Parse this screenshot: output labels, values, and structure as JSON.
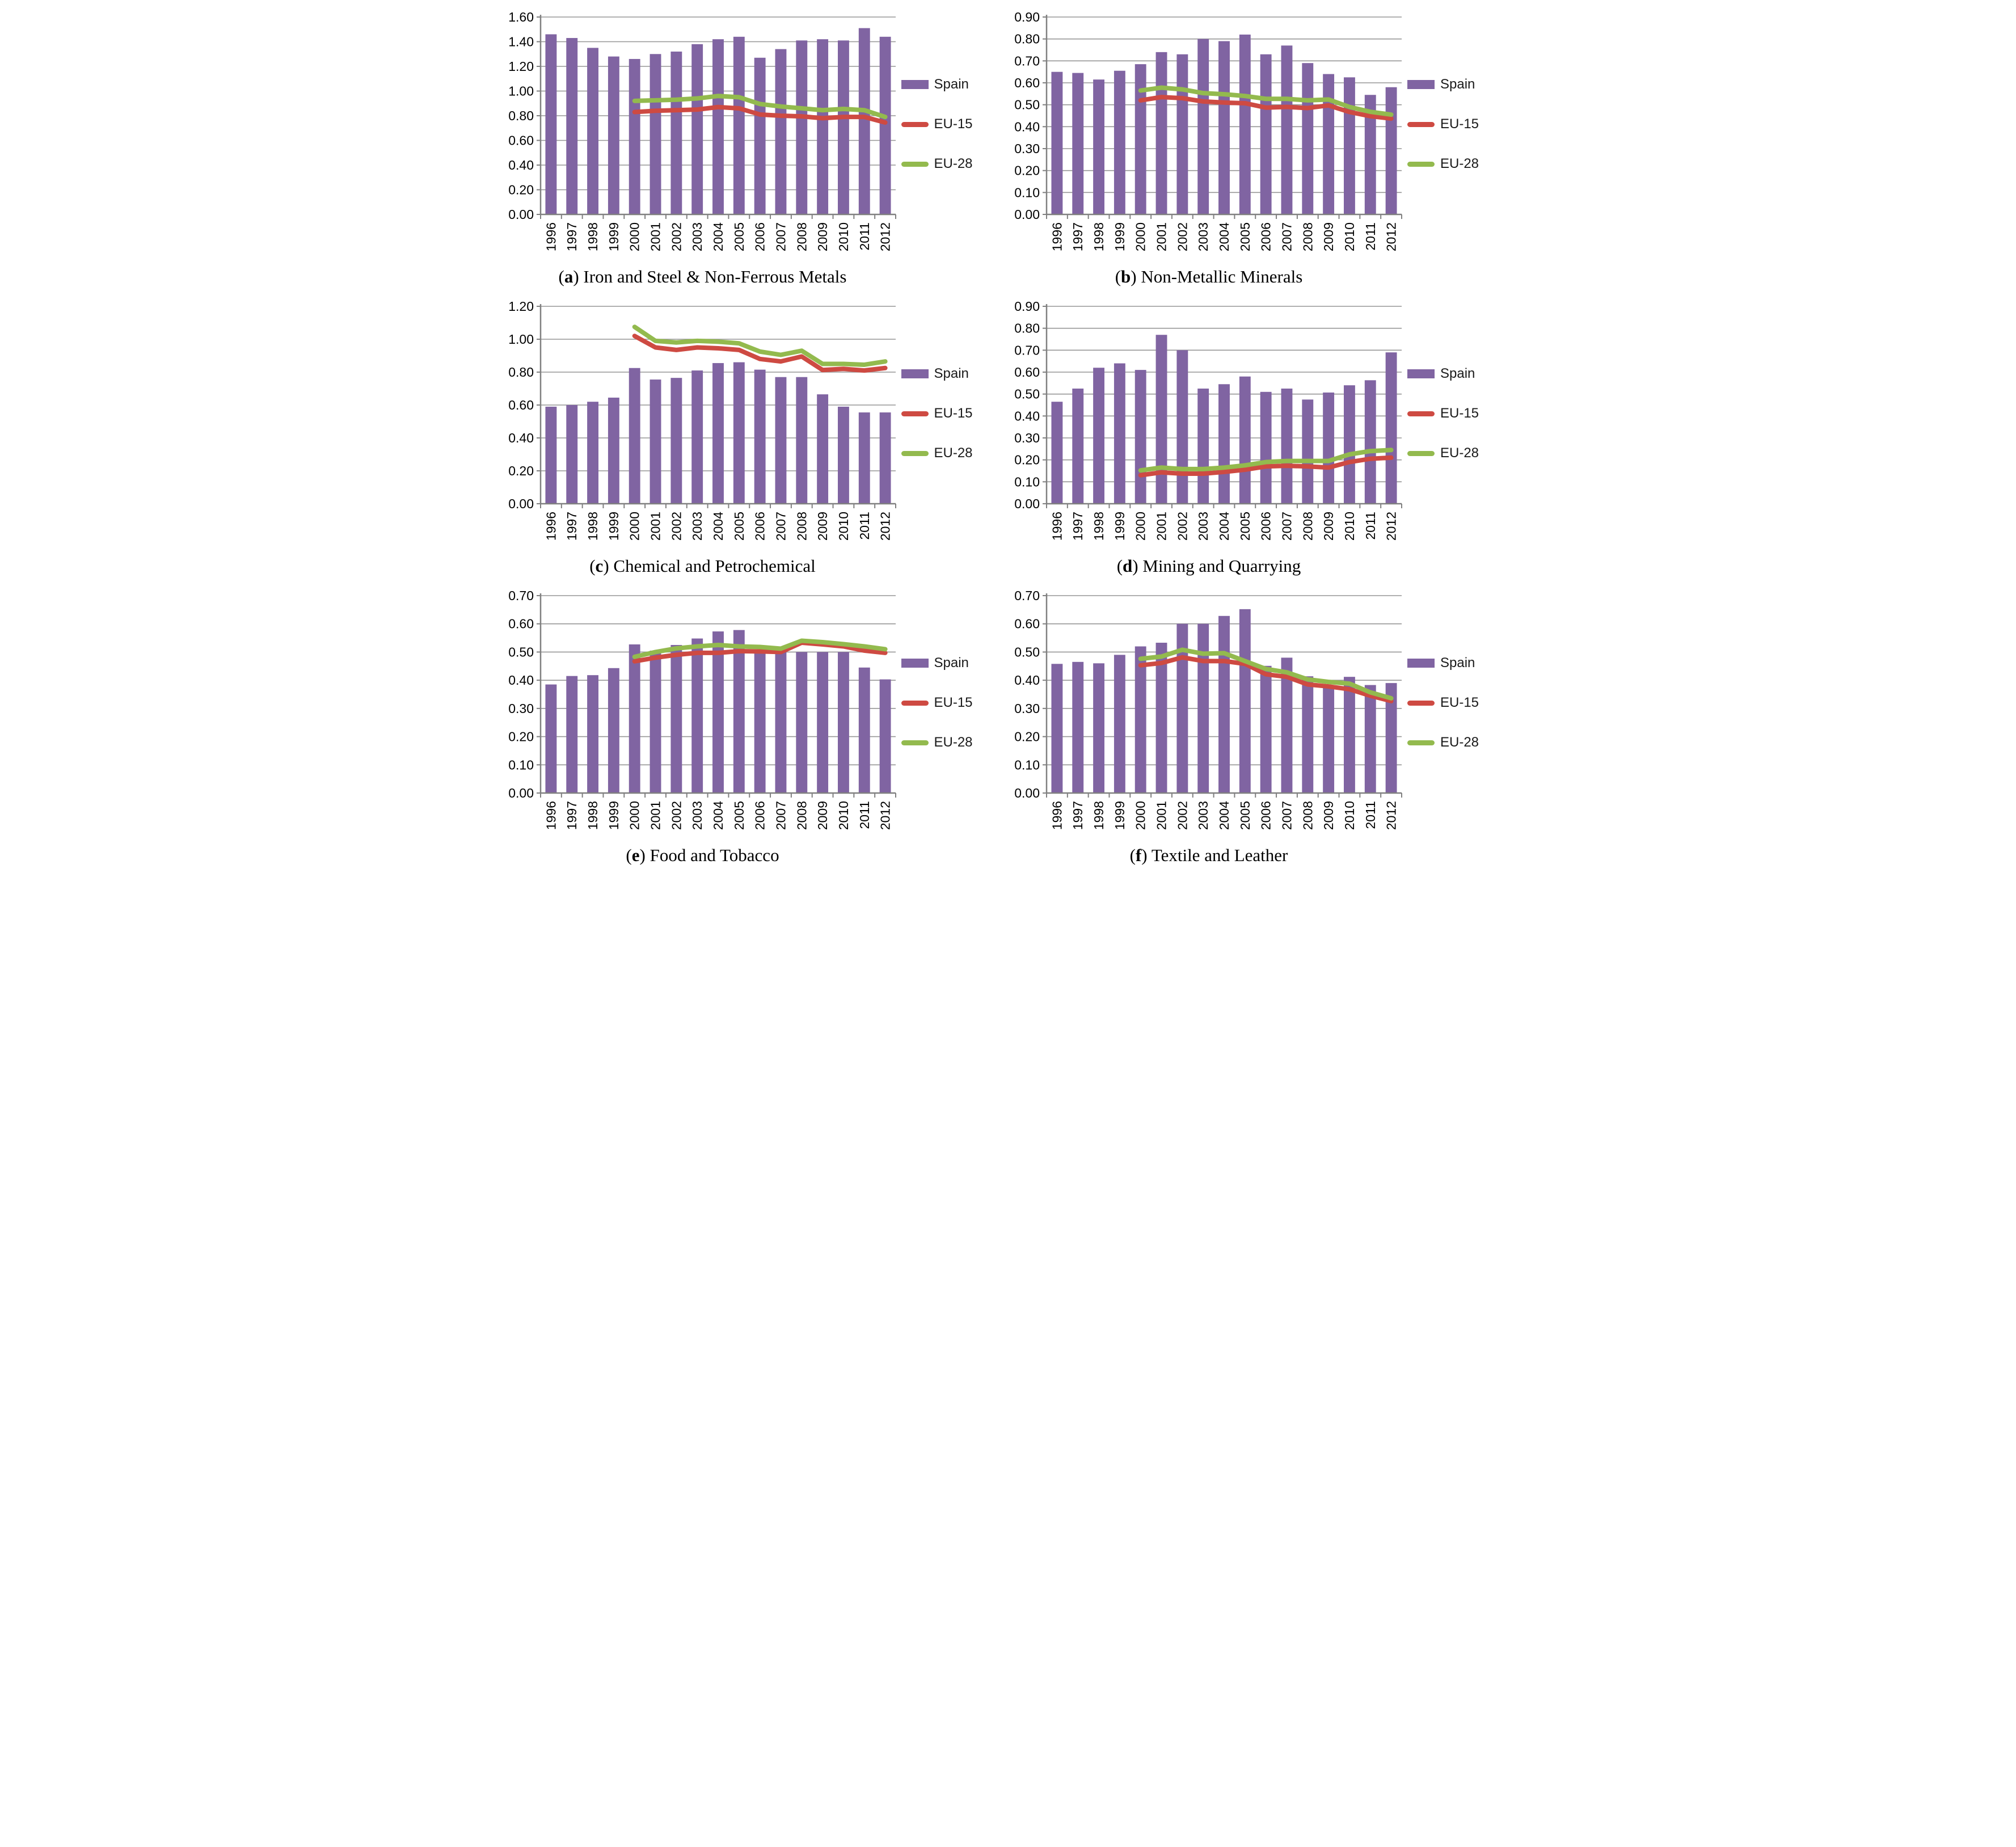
{
  "figure": {
    "legend": {
      "spain": "Spain",
      "eu15": "EU-15",
      "eu28": "EU-28"
    },
    "colors": {
      "spain": "#8064A2",
      "eu15": "#CE4A42",
      "eu28": "#93BA4E",
      "grid": "#969696",
      "axis": "#808080"
    }
  },
  "chart_data": [
    {
      "id": "a",
      "letter": "a",
      "caption": "Iron and Steel & Non-Ferrous Metals",
      "type": "bar",
      "grid": true,
      "legend_position": "right",
      "categories": [
        "1996",
        "1997",
        "1998",
        "1999",
        "2000",
        "2001",
        "2002",
        "2003",
        "2004",
        "2005",
        "2006",
        "2007",
        "2008",
        "2009",
        "2010",
        "2011",
        "2012"
      ],
      "ylim": [
        0,
        1.6
      ],
      "ystep": 0.2,
      "series": [
        {
          "name": "Spain",
          "type": "bar",
          "color_key": "spain",
          "values": [
            1.46,
            1.43,
            1.35,
            1.28,
            1.26,
            1.3,
            1.32,
            1.38,
            1.42,
            1.44,
            1.27,
            1.34,
            1.41,
            1.42,
            1.41,
            1.51,
            1.44
          ]
        },
        {
          "name": "EU-15",
          "type": "line",
          "color_key": "eu15",
          "values": [
            null,
            null,
            null,
            null,
            0.83,
            0.84,
            0.845,
            0.85,
            0.87,
            0.86,
            0.81,
            0.8,
            0.795,
            0.78,
            0.79,
            0.79,
            0.745
          ]
        },
        {
          "name": "EU-28",
          "type": "line",
          "color_key": "eu28",
          "values": [
            null,
            null,
            null,
            null,
            0.92,
            0.925,
            0.93,
            0.94,
            0.96,
            0.95,
            0.895,
            0.875,
            0.86,
            0.845,
            0.855,
            0.845,
            0.79
          ]
        }
      ]
    },
    {
      "id": "b",
      "letter": "b",
      "caption": "Non-Metallic Minerals",
      "type": "bar",
      "grid": true,
      "legend_position": "right",
      "categories": [
        "1996",
        "1997",
        "1998",
        "1999",
        "2000",
        "2001",
        "2002",
        "2003",
        "2004",
        "2005",
        "2006",
        "2007",
        "2008",
        "2009",
        "2010",
        "2011",
        "2012"
      ],
      "ylim": [
        0,
        0.9
      ],
      "ystep": 0.1,
      "series": [
        {
          "name": "Spain",
          "type": "bar",
          "color_key": "spain",
          "values": [
            0.65,
            0.645,
            0.615,
            0.655,
            0.685,
            0.74,
            0.73,
            0.8,
            0.79,
            0.82,
            0.73,
            0.77,
            0.69,
            0.64,
            0.625,
            0.545,
            0.58
          ]
        },
        {
          "name": "EU-15",
          "type": "line",
          "color_key": "eu15",
          "values": [
            null,
            null,
            null,
            null,
            0.52,
            0.535,
            0.53,
            0.515,
            0.51,
            0.507,
            0.487,
            0.49,
            0.485,
            0.497,
            0.467,
            0.448,
            0.437
          ]
        },
        {
          "name": "EU-28",
          "type": "line",
          "color_key": "eu28",
          "values": [
            null,
            null,
            null,
            null,
            0.565,
            0.578,
            0.57,
            0.553,
            0.548,
            0.54,
            0.527,
            0.527,
            0.52,
            0.524,
            0.49,
            0.468,
            0.455
          ]
        }
      ]
    },
    {
      "id": "c",
      "letter": "c",
      "caption": "Chemical and Petrochemical",
      "type": "bar",
      "grid": true,
      "legend_position": "right",
      "categories": [
        "1996",
        "1997",
        "1998",
        "1999",
        "2000",
        "2001",
        "2002",
        "2003",
        "2004",
        "2005",
        "2006",
        "2007",
        "2008",
        "2009",
        "2010",
        "2011",
        "2012"
      ],
      "ylim": [
        0,
        1.2
      ],
      "ystep": 0.2,
      "series": [
        {
          "name": "Spain",
          "type": "bar",
          "color_key": "spain",
          "values": [
            0.59,
            0.6,
            0.62,
            0.645,
            0.825,
            0.755,
            0.765,
            0.81,
            0.855,
            0.86,
            0.815,
            0.77,
            0.77,
            0.665,
            0.59,
            0.555,
            0.555
          ]
        },
        {
          "name": "EU-15",
          "type": "line",
          "color_key": "eu15",
          "values": [
            null,
            null,
            null,
            null,
            1.02,
            0.95,
            0.935,
            0.95,
            0.945,
            0.935,
            0.88,
            0.865,
            0.895,
            0.813,
            0.82,
            0.81,
            0.825
          ]
        },
        {
          "name": "EU-28",
          "type": "line",
          "color_key": "eu28",
          "values": [
            null,
            null,
            null,
            null,
            1.075,
            0.99,
            0.98,
            0.99,
            0.985,
            0.975,
            0.925,
            0.905,
            0.93,
            0.85,
            0.85,
            0.845,
            0.865
          ]
        }
      ]
    },
    {
      "id": "d",
      "letter": "d",
      "caption": "Mining and Quarrying",
      "type": "bar",
      "grid": true,
      "legend_position": "right",
      "categories": [
        "1996",
        "1997",
        "1998",
        "1999",
        "2000",
        "2001",
        "2002",
        "2003",
        "2004",
        "2005",
        "2006",
        "2007",
        "2008",
        "2009",
        "2010",
        "2011",
        "2012"
      ],
      "ylim": [
        0,
        0.9
      ],
      "ystep": 0.1,
      "series": [
        {
          "name": "Spain",
          "type": "bar",
          "color_key": "spain",
          "values": [
            0.465,
            0.525,
            0.62,
            0.64,
            0.61,
            0.77,
            0.7,
            0.525,
            0.545,
            0.58,
            0.51,
            0.525,
            0.475,
            0.507,
            0.54,
            0.563,
            0.69
          ]
        },
        {
          "name": "EU-15",
          "type": "line",
          "color_key": "eu15",
          "values": [
            null,
            null,
            null,
            null,
            0.13,
            0.143,
            0.137,
            0.137,
            0.145,
            0.155,
            0.17,
            0.173,
            0.17,
            0.165,
            0.19,
            0.205,
            0.21
          ]
        },
        {
          "name": "EU-28",
          "type": "line",
          "color_key": "eu28",
          "values": [
            null,
            null,
            null,
            null,
            0.152,
            0.165,
            0.158,
            0.158,
            0.165,
            0.175,
            0.19,
            0.195,
            0.195,
            0.195,
            0.225,
            0.24,
            0.245
          ]
        }
      ]
    },
    {
      "id": "e",
      "letter": "e",
      "caption": "Food and Tobacco",
      "type": "bar",
      "grid": true,
      "legend_position": "right",
      "categories": [
        "1996",
        "1997",
        "1998",
        "1999",
        "2000",
        "2001",
        "2002",
        "2003",
        "2004",
        "2005",
        "2006",
        "2007",
        "2008",
        "2009",
        "2010",
        "2011",
        "2012"
      ],
      "ylim": [
        0,
        0.7
      ],
      "ystep": 0.1,
      "series": [
        {
          "name": "Spain",
          "type": "bar",
          "color_key": "spain",
          "values": [
            0.385,
            0.415,
            0.418,
            0.443,
            0.527,
            0.505,
            0.525,
            0.548,
            0.573,
            0.578,
            0.5,
            0.5,
            0.5,
            0.5,
            0.5,
            0.445,
            0.403
          ]
        },
        {
          "name": "EU-15",
          "type": "line",
          "color_key": "eu15",
          "values": [
            null,
            null,
            null,
            null,
            0.467,
            0.48,
            0.49,
            0.497,
            0.497,
            0.503,
            0.502,
            0.5,
            0.533,
            0.527,
            0.52,
            0.505,
            0.497
          ]
        },
        {
          "name": "EU-28",
          "type": "line",
          "color_key": "eu28",
          "values": [
            null,
            null,
            null,
            null,
            0.483,
            0.5,
            0.513,
            0.52,
            0.525,
            0.52,
            0.518,
            0.512,
            0.54,
            0.535,
            0.528,
            0.52,
            0.51
          ]
        }
      ]
    },
    {
      "id": "f",
      "letter": "f",
      "caption": "Textile and Leather",
      "type": "bar",
      "grid": true,
      "legend_position": "right",
      "categories": [
        "1996",
        "1997",
        "1998",
        "1999",
        "2000",
        "2001",
        "2002",
        "2003",
        "2004",
        "2005",
        "2006",
        "2007",
        "2008",
        "2009",
        "2010",
        "2011",
        "2012"
      ],
      "ylim": [
        0,
        0.7
      ],
      "ystep": 0.1,
      "series": [
        {
          "name": "Spain",
          "type": "bar",
          "color_key": "spain",
          "values": [
            0.458,
            0.465,
            0.46,
            0.49,
            0.52,
            0.533,
            0.6,
            0.6,
            0.628,
            0.652,
            0.451,
            0.48,
            0.414,
            0.38,
            0.412,
            0.383,
            0.39
          ]
        },
        {
          "name": "EU-15",
          "type": "line",
          "color_key": "eu15",
          "values": [
            null,
            null,
            null,
            null,
            0.453,
            0.461,
            0.481,
            0.468,
            0.468,
            0.458,
            0.421,
            0.412,
            0.385,
            0.378,
            0.368,
            0.345,
            0.326
          ]
        },
        {
          "name": "EU-28",
          "type": "line",
          "color_key": "eu28",
          "values": [
            null,
            null,
            null,
            null,
            0.476,
            0.484,
            0.508,
            0.494,
            0.496,
            0.468,
            0.44,
            0.428,
            0.403,
            0.394,
            0.388,
            0.357,
            0.336
          ]
        }
      ]
    }
  ]
}
